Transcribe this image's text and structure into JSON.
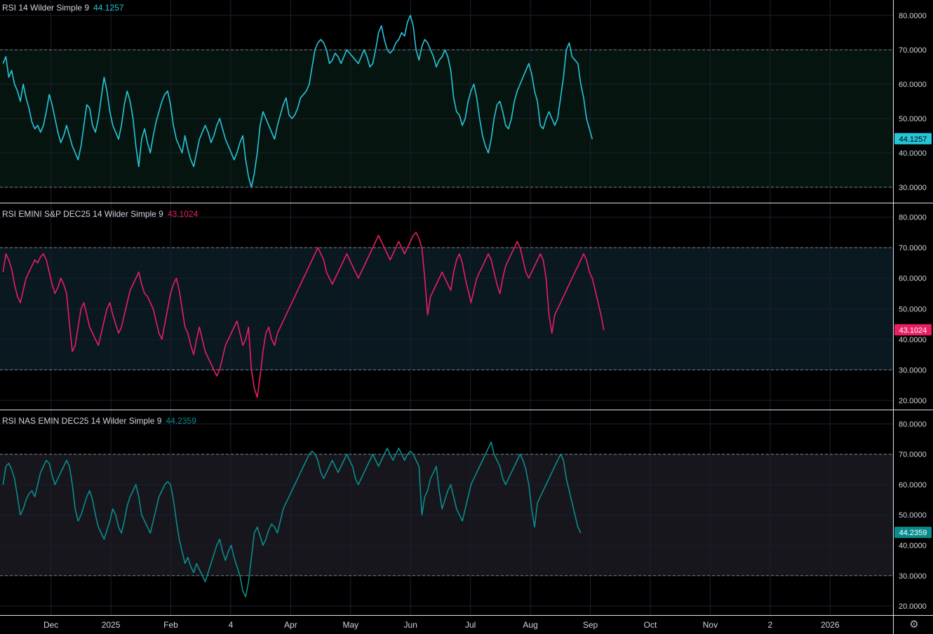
{
  "colors": {
    "background": "#000000",
    "grid": "#1c2030",
    "separator": "#e0e3eb",
    "axis_text": "#d1d4dc",
    "panel_fills": [
      "#06140f",
      "#0a1820",
      "#16161c"
    ]
  },
  "time_axis": {
    "labels": [
      {
        "label": "Dec",
        "x": 0
      },
      {
        "label": "2025",
        "x": 1
      },
      {
        "label": "Feb",
        "x": 2
      },
      {
        "label": "4",
        "x": 3
      },
      {
        "label": "Apr",
        "x": 4
      },
      {
        "label": "May",
        "x": 5
      },
      {
        "label": "Jun",
        "x": 6
      },
      {
        "label": "Jul",
        "x": 7
      },
      {
        "label": "Aug",
        "x": 8
      },
      {
        "label": "Sep",
        "x": 9
      },
      {
        "label": "Oct",
        "x": 10
      },
      {
        "label": "Nov",
        "x": 11
      },
      {
        "label": "2",
        "x": 12
      },
      {
        "label": "2026",
        "x": 13
      }
    ],
    "x_range": [
      -0.85,
      14.05
    ]
  },
  "settings_icon": "gear-icon",
  "chart_data": [
    {
      "type": "line",
      "title": "RSI 14 Wilder Simple 9",
      "last_value": "44.1257",
      "color": "#26c6da",
      "label_text_color": "#000000",
      "ylim": [
        25.5,
        84.5
      ],
      "yticks": [
        {
          "v": 80,
          "label": "80.0000"
        },
        {
          "v": 70,
          "label": "70.0000"
        },
        {
          "v": 60,
          "label": "60.0000"
        },
        {
          "v": 50,
          "label": "50.0000"
        },
        {
          "v": 40,
          "label": "40.0000"
        },
        {
          "v": 30,
          "label": "30.0000"
        }
      ],
      "band": [
        30,
        70
      ],
      "series": [
        {
          "name": "RSI 14 Wilder Simple 9",
          "x_start": -0.8,
          "x_step": 0.0482,
          "values": [
            66,
            68,
            62,
            64,
            60,
            58,
            55,
            60,
            56,
            53,
            49,
            47,
            48,
            46,
            48,
            52,
            57,
            54,
            50,
            46,
            43,
            45,
            48,
            45,
            42,
            40,
            38,
            42,
            48,
            54,
            53,
            48,
            46,
            50,
            56,
            62,
            58,
            52,
            48,
            46,
            44,
            48,
            54,
            58,
            55,
            50,
            42,
            36,
            44,
            47,
            43,
            40,
            45,
            49,
            52,
            55,
            57,
            58,
            54,
            48,
            44,
            42,
            40,
            45,
            41,
            38,
            36,
            40,
            44,
            46,
            48,
            46,
            43,
            45,
            48,
            50,
            47,
            44,
            42,
            40,
            38,
            40,
            43,
            45,
            38,
            33,
            30,
            34,
            40,
            48,
            52,
            50,
            48,
            46,
            44,
            48,
            51,
            54,
            56,
            51,
            50,
            51,
            53,
            56,
            57,
            58,
            60,
            65,
            70,
            72,
            73,
            72,
            70,
            66,
            67,
            69,
            68,
            66,
            68,
            70,
            69,
            68,
            67,
            66,
            68,
            70,
            68,
            65,
            66,
            70,
            75,
            77,
            73,
            70,
            69,
            70,
            72,
            73,
            75,
            74,
            78,
            80,
            77,
            70,
            67,
            71,
            73,
            72,
            70,
            68,
            65,
            67,
            68,
            70,
            68,
            64,
            56,
            52,
            51,
            48,
            50,
            55,
            58,
            60,
            56,
            50,
            45,
            42,
            40,
            44,
            50,
            54,
            55,
            52,
            48,
            47,
            50,
            55,
            58,
            60,
            62,
            64,
            66,
            63,
            58,
            55,
            48,
            47,
            50,
            52,
            50,
            48,
            50,
            56,
            62,
            70,
            72,
            68,
            67,
            66,
            60,
            56,
            50,
            47,
            44
          ]
        }
      ]
    },
    {
      "type": "line",
      "title": "RSI EMINI S&P DEC25 14 Wilder Simple 9",
      "last_value": "43.1024",
      "color": "#e91e63",
      "label_text_color": "#ffffff",
      "ylim": [
        17.0,
        84.5
      ],
      "yticks": [
        {
          "v": 80,
          "label": "80.0000"
        },
        {
          "v": 70,
          "label": "70.0000"
        },
        {
          "v": 60,
          "label": "60.0000"
        },
        {
          "v": 50,
          "label": "50.0000"
        },
        {
          "v": 40,
          "label": "40.0000"
        },
        {
          "v": 30,
          "label": "30.0000"
        },
        {
          "v": 20,
          "label": "20.0000"
        }
      ],
      "band": [
        30,
        70
      ],
      "series": [
        {
          "name": "RSI EMINI S&P DEC25 14 Wilder Simple 9",
          "x_start": -0.8,
          "x_step": 0.0482,
          "values": [
            62,
            68,
            66,
            63,
            58,
            54,
            52,
            56,
            60,
            62,
            64,
            66,
            65,
            67,
            68,
            66,
            62,
            58,
            55,
            57,
            60,
            58,
            55,
            45,
            36,
            38,
            44,
            50,
            52,
            48,
            44,
            42,
            40,
            38,
            42,
            46,
            50,
            52,
            48,
            45,
            42,
            44,
            48,
            52,
            56,
            58,
            60,
            62,
            58,
            55,
            54,
            52,
            50,
            46,
            42,
            40,
            45,
            50,
            55,
            58,
            60,
            56,
            50,
            44,
            42,
            38,
            35,
            40,
            44,
            40,
            36,
            34,
            32,
            30,
            28,
            30,
            34,
            38,
            40,
            42,
            44,
            46,
            42,
            38,
            40,
            44,
            30,
            24,
            21,
            28,
            36,
            42,
            44,
            40,
            38,
            42,
            44,
            46,
            48,
            50,
            52,
            54,
            56,
            58,
            60,
            62,
            64,
            66,
            68,
            70,
            68,
            66,
            62,
            60,
            58,
            60,
            62,
            64,
            66,
            68,
            66,
            64,
            62,
            60,
            62,
            64,
            66,
            68,
            70,
            72,
            74,
            72,
            70,
            68,
            66,
            68,
            70,
            72,
            70,
            68,
            70,
            72,
            74,
            75,
            73,
            70,
            60,
            48,
            54,
            56,
            58,
            60,
            62,
            60,
            58,
            56,
            62,
            66,
            68,
            65,
            60,
            56,
            52,
            56,
            60,
            62,
            64,
            66,
            68,
            66,
            62,
            58,
            55,
            60,
            64,
            66,
            68,
            70,
            72,
            70,
            66,
            62,
            60,
            62,
            64,
            66,
            68,
            66,
            60,
            48,
            42,
            48,
            50,
            52,
            54,
            56,
            58,
            60,
            62,
            64,
            66,
            68,
            66,
            62,
            60,
            56,
            52,
            48,
            43
          ]
        }
      ]
    },
    {
      "type": "line",
      "title": "RSI NAS EMIN DEC25 14 Wilder Simple 9",
      "last_value": "44.2359",
      "color": "#0b8c8c",
      "label_text_color": "#ffffff",
      "ylim": [
        17.0,
        84.5
      ],
      "yticks": [
        {
          "v": 80,
          "label": "80.0000"
        },
        {
          "v": 70,
          "label": "70.0000"
        },
        {
          "v": 60,
          "label": "60.0000"
        },
        {
          "v": 50,
          "label": "50.0000"
        },
        {
          "v": 40,
          "label": "40.0000"
        },
        {
          "v": 30,
          "label": "30.0000"
        },
        {
          "v": 20,
          "label": "20.0000"
        }
      ],
      "band": [
        30,
        70
      ],
      "series": [
        {
          "name": "RSI NAS EMIN DEC25 14 Wilder Simple 9",
          "x_start": -0.8,
          "x_step": 0.0482,
          "values": [
            60,
            66,
            67,
            65,
            62,
            56,
            50,
            52,
            55,
            57,
            58,
            56,
            60,
            64,
            66,
            68,
            67,
            63,
            60,
            62,
            64,
            66,
            68,
            66,
            60,
            52,
            48,
            50,
            53,
            56,
            58,
            55,
            50,
            46,
            44,
            42,
            45,
            48,
            52,
            50,
            46,
            44,
            48,
            53,
            56,
            58,
            60,
            56,
            50,
            48,
            46,
            44,
            48,
            52,
            56,
            58,
            60,
            61,
            60,
            55,
            48,
            42,
            38,
            34,
            36,
            33,
            31,
            34,
            32,
            30,
            28,
            31,
            34,
            37,
            40,
            42,
            38,
            35,
            38,
            40,
            36,
            33,
            30,
            25,
            23,
            28,
            36,
            44,
            46,
            43,
            40,
            42,
            45,
            47,
            46,
            44,
            48,
            52,
            54,
            56,
            58,
            60,
            62,
            64,
            66,
            68,
            70,
            71,
            70,
            68,
            64,
            62,
            64,
            66,
            68,
            66,
            64,
            66,
            68,
            70,
            68,
            66,
            62,
            60,
            62,
            64,
            66,
            68,
            70,
            68,
            66,
            68,
            70,
            72,
            70,
            68,
            70,
            72,
            70,
            68,
            70,
            71,
            70,
            68,
            66,
            50,
            56,
            58,
            62,
            64,
            66,
            58,
            52,
            55,
            58,
            60,
            56,
            52,
            50,
            48,
            52,
            56,
            60,
            62,
            64,
            66,
            68,
            70,
            72,
            74,
            70,
            68,
            66,
            62,
            60,
            62,
            64,
            66,
            68,
            70,
            68,
            65,
            60,
            52,
            46,
            54,
            56,
            58,
            60,
            62,
            64,
            66,
            68,
            70,
            68,
            62,
            58,
            54,
            50,
            46,
            44
          ]
        }
      ]
    }
  ]
}
